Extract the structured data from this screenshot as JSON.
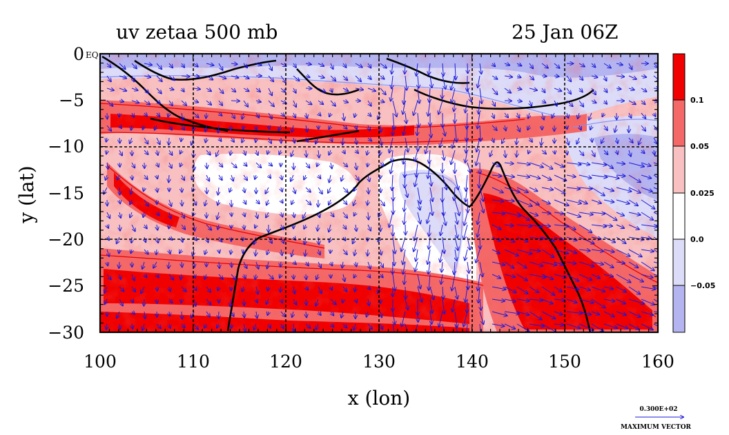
{
  "chart_data": {
    "type": "heatmap",
    "title": "uv zetaa 500 mb",
    "time_label": "25 Jan 06Z",
    "xlabel": "x (lon)",
    "ylabel": "y (lat)",
    "xlim": [
      100,
      160
    ],
    "ylim": [
      -30,
      0
    ],
    "x_ticks": [
      "100",
      "110",
      "120",
      "130",
      "140",
      "150",
      "160"
    ],
    "y_ticks": [
      "0",
      "−5",
      "−10",
      "−15",
      "−20",
      "−25",
      "−30"
    ],
    "y_tick_suffix": "EQ",
    "grid": true,
    "colorbar": {
      "labels": [
        "0.1",
        "0.05",
        "0.025",
        "0.0",
        "−0.05"
      ],
      "colors": [
        "#f00000",
        "#f46868",
        "#f8c0c0",
        "#ffffff",
        "#dcdcf8",
        "#b4b4f0"
      ]
    },
    "vector_legend": {
      "magnitude": "0.300E+02",
      "caption": "MAXIMUM VECTOR"
    },
    "colors": {
      "strong_positive": "#f00000",
      "positive": "#f46868",
      "weak_positive": "#f8c0c0",
      "neutral": "#ffffff",
      "weak_negative": "#dcdcf8",
      "negative": "#b4b4f0",
      "contour_red": "#e80000",
      "contour_blue": "#8c8cf0",
      "vectors": "#1a1ad8",
      "grid": "#000000"
    }
  }
}
